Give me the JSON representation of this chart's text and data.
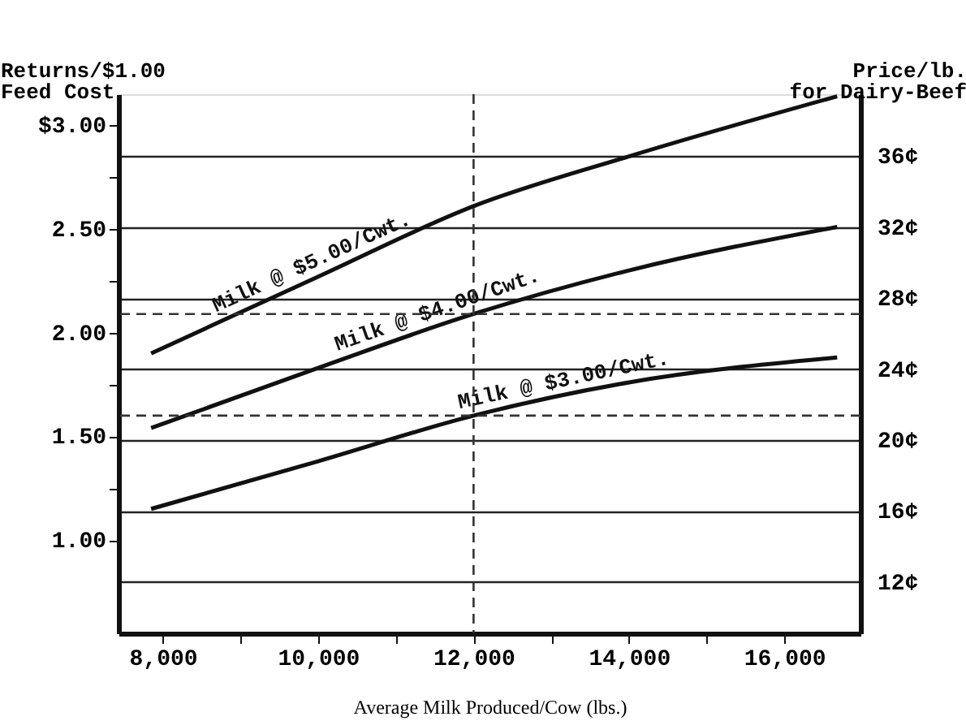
{
  "chart_data": {
    "type": "line",
    "xlabel": "Average Milk Produced/Cow (lbs.)",
    "ylabel": "Returns/$1.00\nFeed Cost",
    "y2label": "Price/lb.\nfor Dairy-Beef",
    "x": [
      7850,
      10000,
      12000,
      14000,
      16680
    ],
    "series": [
      {
        "name": "Milk @ $5.00/Cwt.",
        "color": "#111111",
        "values": [
          1.9,
          2.27,
          2.61,
          2.85,
          3.14
        ]
      },
      {
        "name": "Milk @ $4.00/Cwt.",
        "color": "#111111",
        "values": [
          1.54,
          1.83,
          2.09,
          2.3,
          2.51
        ]
      },
      {
        "name": "Milk @ $3.00/Cwt.",
        "color": "#111111",
        "values": [
          1.15,
          1.38,
          1.6,
          1.76,
          1.88
        ]
      }
    ],
    "xlim": [
      7430,
      16980
    ],
    "xticks": [
      {
        "value": 8000,
        "label": "8,000"
      },
      {
        "value": 9000,
        "label": null
      },
      {
        "value": 10000,
        "label": "10,000"
      },
      {
        "value": 11000,
        "label": null
      },
      {
        "value": 12000,
        "label": "12,000"
      },
      {
        "value": 13000,
        "label": null
      },
      {
        "value": 14000,
        "label": "14,000"
      },
      {
        "value": 15000,
        "label": null
      },
      {
        "value": 16000,
        "label": "16,000"
      }
    ],
    "ylim": [
      0.55,
      3.15
    ],
    "yticks": [
      {
        "value": 1,
        "label": "1.00"
      },
      {
        "value": 1.25,
        "label": null
      },
      {
        "value": 1.5,
        "label": "1.50"
      },
      {
        "value": 1.75,
        "label": null
      },
      {
        "value": 2,
        "label": "2.00"
      },
      {
        "value": 2.25,
        "label": null
      },
      {
        "value": 2.5,
        "label": "2.50"
      },
      {
        "value": 2.75,
        "label": null
      },
      {
        "value": 3,
        "label": "$3.00"
      }
    ],
    "y2lim": [
      9.1,
      39.5
    ],
    "y2ticks": [
      {
        "value": 12,
        "label": "12¢"
      },
      {
        "value": 16,
        "label": "16¢"
      },
      {
        "value": 20,
        "label": "20¢"
      },
      {
        "value": 24,
        "label": "24¢"
      },
      {
        "value": 28,
        "label": "28¢"
      },
      {
        "value": 32,
        "label": "32¢"
      },
      {
        "value": 36,
        "label": "36¢"
      }
    ],
    "grid": "y",
    "legend": false,
    "ref_lines": [
      {
        "axis": "y",
        "value": 2.09,
        "line_style": "dashed"
      },
      {
        "axis": "y",
        "value": 1.6,
        "line_style": "dashed"
      },
      {
        "axis": "x",
        "value": 12000,
        "line_style": "dashed"
      }
    ]
  }
}
